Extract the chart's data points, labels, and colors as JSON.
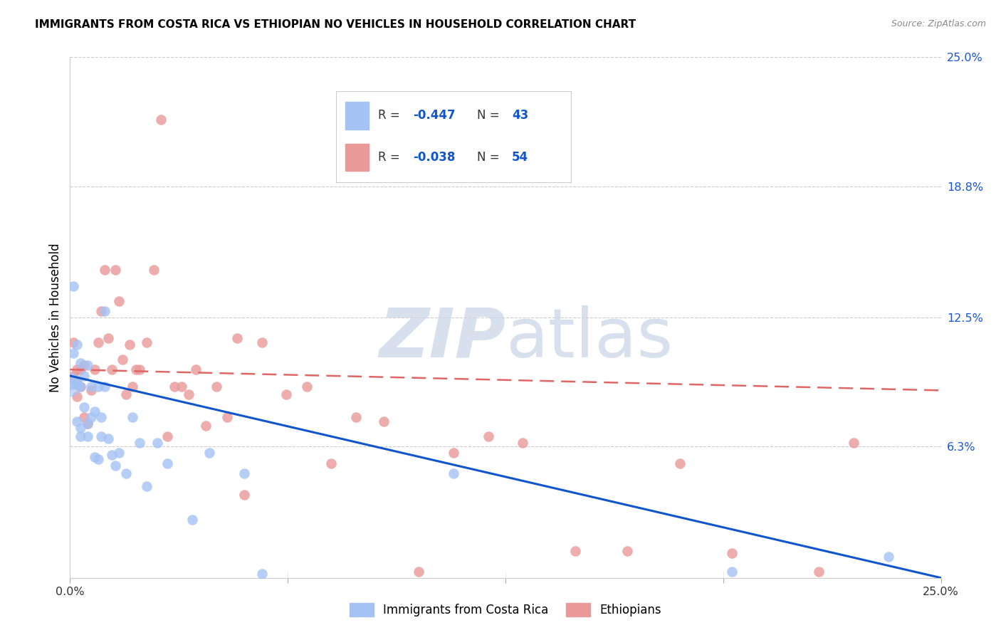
{
  "title": "IMMIGRANTS FROM COSTA RICA VS ETHIOPIAN NO VEHICLES IN HOUSEHOLD CORRELATION CHART",
  "source": "Source: ZipAtlas.com",
  "ylabel": "No Vehicles in Household",
  "xmin": 0.0,
  "xmax": 0.25,
  "ymin": 0.0,
  "ymax": 0.25,
  "yticks": [
    0.0,
    0.063,
    0.125,
    0.188,
    0.25
  ],
  "ytick_labels": [
    "",
    "6.3%",
    "12.5%",
    "18.8%",
    "25.0%"
  ],
  "xticks": [
    0.0,
    0.0625,
    0.125,
    0.1875,
    0.25
  ],
  "xtick_labels": [
    "0.0%",
    "",
    "",
    "",
    "25.0%"
  ],
  "blue_color": "#a4c2f4",
  "pink_color": "#ea9999",
  "blue_line_color": "#1155cc",
  "pink_line_color": "#e06666",
  "watermark_color": "#c8d4e8",
  "blue_x": [
    0.0005,
    0.001,
    0.001,
    0.0015,
    0.002,
    0.002,
    0.002,
    0.003,
    0.003,
    0.003,
    0.003,
    0.004,
    0.004,
    0.005,
    0.005,
    0.005,
    0.006,
    0.006,
    0.007,
    0.007,
    0.008,
    0.008,
    0.009,
    0.009,
    0.01,
    0.01,
    0.011,
    0.012,
    0.013,
    0.014,
    0.016,
    0.018,
    0.02,
    0.022,
    0.025,
    0.028,
    0.035,
    0.04,
    0.05,
    0.055,
    0.11,
    0.19,
    0.235
  ],
  "blue_y": [
    0.093,
    0.108,
    0.14,
    0.095,
    0.112,
    0.093,
    0.075,
    0.103,
    0.068,
    0.072,
    0.092,
    0.097,
    0.082,
    0.102,
    0.074,
    0.068,
    0.077,
    0.092,
    0.08,
    0.058,
    0.057,
    0.092,
    0.077,
    0.068,
    0.092,
    0.128,
    0.067,
    0.059,
    0.054,
    0.06,
    0.05,
    0.077,
    0.065,
    0.044,
    0.065,
    0.055,
    0.028,
    0.06,
    0.05,
    0.002,
    0.05,
    0.003,
    0.01
  ],
  "pink_x": [
    0.001,
    0.001,
    0.002,
    0.002,
    0.002,
    0.003,
    0.003,
    0.004,
    0.004,
    0.005,
    0.006,
    0.007,
    0.008,
    0.009,
    0.01,
    0.011,
    0.012,
    0.013,
    0.014,
    0.015,
    0.016,
    0.017,
    0.018,
    0.019,
    0.02,
    0.022,
    0.024,
    0.026,
    0.028,
    0.03,
    0.032,
    0.034,
    0.036,
    0.039,
    0.042,
    0.045,
    0.048,
    0.05,
    0.055,
    0.062,
    0.068,
    0.075,
    0.082,
    0.09,
    0.1,
    0.11,
    0.12,
    0.13,
    0.145,
    0.16,
    0.175,
    0.19,
    0.215,
    0.225
  ],
  "pink_y": [
    0.097,
    0.113,
    0.094,
    0.087,
    0.1,
    0.1,
    0.092,
    0.102,
    0.077,
    0.074,
    0.09,
    0.1,
    0.113,
    0.128,
    0.148,
    0.115,
    0.1,
    0.148,
    0.133,
    0.105,
    0.088,
    0.112,
    0.092,
    0.1,
    0.1,
    0.113,
    0.148,
    0.22,
    0.068,
    0.092,
    0.092,
    0.088,
    0.1,
    0.073,
    0.092,
    0.077,
    0.115,
    0.04,
    0.113,
    0.088,
    0.092,
    0.055,
    0.077,
    0.075,
    0.003,
    0.06,
    0.068,
    0.065,
    0.013,
    0.013,
    0.055,
    0.012,
    0.003,
    0.065
  ],
  "blue_trend_x0": 0.0,
  "blue_trend_y0": 0.097,
  "blue_trend_x1": 0.25,
  "blue_trend_y1": 0.0,
  "pink_trend_x0": 0.0,
  "pink_trend_y0": 0.1,
  "pink_trend_x1": 0.25,
  "pink_trend_y1": 0.09
}
